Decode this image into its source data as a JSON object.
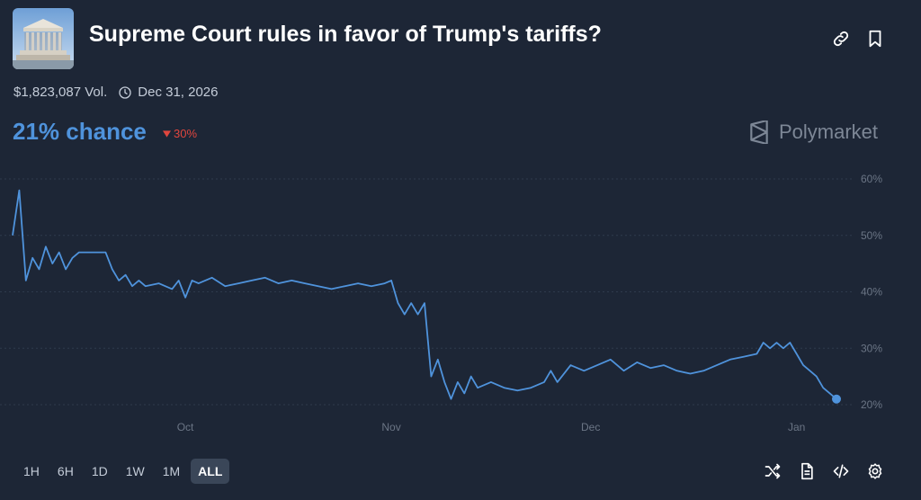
{
  "header": {
    "title": "Supreme Court rules in favor of Trump's tariffs?",
    "volume": "$1,823,087 Vol.",
    "end_date": "Dec 31, 2026",
    "icons": [
      "supreme-court-thumbnail",
      "link-icon",
      "bookmark-icon",
      "clock-icon"
    ]
  },
  "summary": {
    "chance": "21% chance",
    "change": "30%",
    "change_direction": "down",
    "change_color": "#e0463e"
  },
  "brand": {
    "name": "Polymarket"
  },
  "ranges": [
    {
      "label": "1H",
      "active": false
    },
    {
      "label": "6H",
      "active": false
    },
    {
      "label": "1D",
      "active": false
    },
    {
      "label": "1W",
      "active": false
    },
    {
      "label": "1M",
      "active": false
    },
    {
      "label": "ALL",
      "active": true
    }
  ],
  "tools": [
    "shuffle-icon",
    "document-icon",
    "embed-code-icon",
    "settings-icon"
  ],
  "chart_data": {
    "type": "line",
    "x_ticks": [
      "Oct",
      "Nov",
      "Dec",
      "Jan"
    ],
    "y_ticks": [
      "60%",
      "50%",
      "40%",
      "30%",
      "20%"
    ],
    "ylim": [
      20,
      60
    ],
    "grid": true,
    "line_color": "#4f93dc",
    "series": [
      {
        "points": [
          [
            "2025-09-05",
            50
          ],
          [
            "2025-09-06",
            58
          ],
          [
            "2025-09-07",
            42
          ],
          [
            "2025-09-08",
            46
          ],
          [
            "2025-09-09",
            44
          ],
          [
            "2025-09-10",
            48
          ],
          [
            "2025-09-11",
            45
          ],
          [
            "2025-09-12",
            47
          ],
          [
            "2025-09-13",
            44
          ],
          [
            "2025-09-14",
            46
          ],
          [
            "2025-09-15",
            47
          ],
          [
            "2025-09-17",
            47
          ],
          [
            "2025-09-19",
            47
          ],
          [
            "2025-09-20",
            44
          ],
          [
            "2025-09-21",
            42
          ],
          [
            "2025-09-22",
            43
          ],
          [
            "2025-09-23",
            41
          ],
          [
            "2025-09-24",
            42
          ],
          [
            "2025-09-25",
            41
          ],
          [
            "2025-09-27",
            41.5
          ],
          [
            "2025-09-29",
            40.5
          ],
          [
            "2025-09-30",
            42
          ],
          [
            "2025-10-01",
            39
          ],
          [
            "2025-10-02",
            42
          ],
          [
            "2025-10-03",
            41.5
          ],
          [
            "2025-10-05",
            42.5
          ],
          [
            "2025-10-07",
            41
          ],
          [
            "2025-10-09",
            41.5
          ],
          [
            "2025-10-11",
            42
          ],
          [
            "2025-10-13",
            42.5
          ],
          [
            "2025-10-15",
            41.5
          ],
          [
            "2025-10-17",
            42
          ],
          [
            "2025-10-19",
            41.5
          ],
          [
            "2025-10-21",
            41
          ],
          [
            "2025-10-23",
            40.5
          ],
          [
            "2025-10-25",
            41
          ],
          [
            "2025-10-27",
            41.5
          ],
          [
            "2025-10-29",
            41
          ],
          [
            "2025-10-31",
            41.5
          ],
          [
            "2025-11-01",
            42
          ],
          [
            "2025-11-02",
            38
          ],
          [
            "2025-11-03",
            36
          ],
          [
            "2025-11-04",
            38
          ],
          [
            "2025-11-05",
            36
          ],
          [
            "2025-11-06",
            38
          ],
          [
            "2025-11-07",
            25
          ],
          [
            "2025-11-08",
            28
          ],
          [
            "2025-11-09",
            24
          ],
          [
            "2025-11-10",
            21
          ],
          [
            "2025-11-11",
            24
          ],
          [
            "2025-11-12",
            22
          ],
          [
            "2025-11-13",
            25
          ],
          [
            "2025-11-14",
            23
          ],
          [
            "2025-11-16",
            24
          ],
          [
            "2025-11-18",
            23
          ],
          [
            "2025-11-20",
            22.5
          ],
          [
            "2025-11-22",
            23
          ],
          [
            "2025-11-24",
            24
          ],
          [
            "2025-11-25",
            26
          ],
          [
            "2025-11-26",
            24
          ],
          [
            "2025-11-28",
            27
          ],
          [
            "2025-11-30",
            26
          ],
          [
            "2025-12-02",
            27
          ],
          [
            "2025-12-04",
            28
          ],
          [
            "2025-12-06",
            26
          ],
          [
            "2025-12-08",
            27.5
          ],
          [
            "2025-12-10",
            26.5
          ],
          [
            "2025-12-12",
            27
          ],
          [
            "2025-12-14",
            26
          ],
          [
            "2025-12-16",
            25.5
          ],
          [
            "2025-12-18",
            26
          ],
          [
            "2025-12-20",
            27
          ],
          [
            "2025-12-22",
            28
          ],
          [
            "2025-12-24",
            28.5
          ],
          [
            "2025-12-26",
            29
          ],
          [
            "2025-12-27",
            31
          ],
          [
            "2025-12-28",
            30
          ],
          [
            "2025-12-29",
            31
          ],
          [
            "2025-12-30",
            30
          ],
          [
            "2025-12-31",
            31
          ],
          [
            "2026-01-01",
            29
          ],
          [
            "2026-01-02",
            27
          ],
          [
            "2026-01-03",
            26
          ],
          [
            "2026-01-04",
            25
          ],
          [
            "2026-01-05",
            23
          ],
          [
            "2026-01-06",
            22
          ],
          [
            "2026-01-07",
            21
          ]
        ]
      }
    ]
  }
}
